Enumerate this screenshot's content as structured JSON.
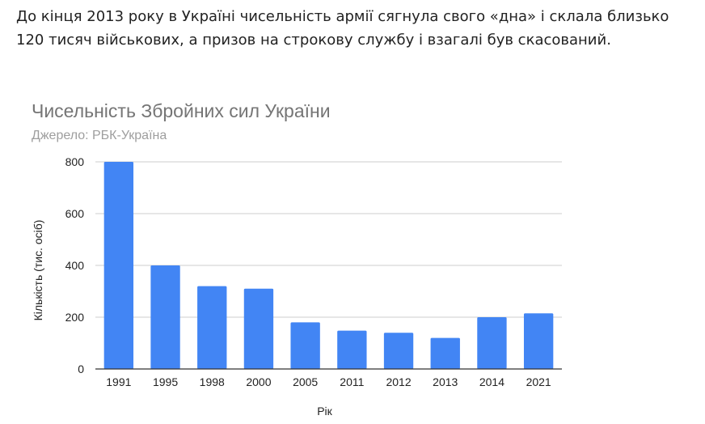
{
  "article": {
    "paragraph": "До кінця 2013 року в Україні чисельність армії сягнула свого «дна» і склала близько 120 тисяч військових, а призов на строкову службу і взагалі був скасований."
  },
  "chart_data": {
    "type": "bar",
    "title": "Чисельність Збройних сил України",
    "subtitle": "Джерело: РБК-Україна",
    "xlabel": "Рік",
    "ylabel": "Кількість (тис. осіб)",
    "categories": [
      "1991",
      "1995",
      "1998",
      "2000",
      "2005",
      "2011",
      "2012",
      "2013",
      "2014",
      "2021"
    ],
    "values": [
      800,
      400,
      320,
      310,
      180,
      148,
      140,
      120,
      200,
      215
    ],
    "ylim": [
      0,
      800
    ],
    "yticks": [
      0,
      200,
      400,
      600,
      800
    ],
    "grid": true,
    "legend": "none",
    "bar_color": "#4285f4",
    "grid_color": "#cccccc",
    "axis_color": "#333333"
  }
}
